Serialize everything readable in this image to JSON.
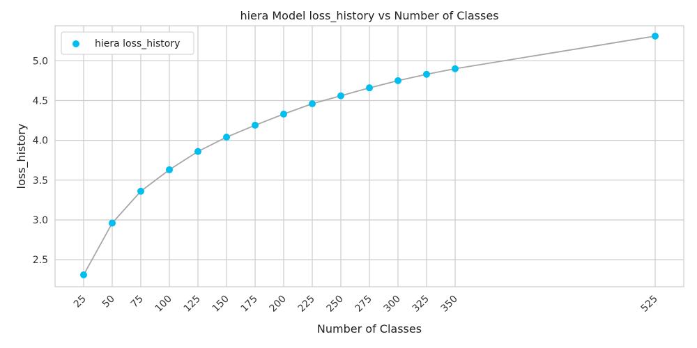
{
  "chart_data": {
    "type": "line",
    "title": "hiera Model loss_history vs Number of Classes",
    "xlabel": "Number of Classes",
    "ylabel": "loss_history",
    "x": [
      25,
      50,
      75,
      100,
      125,
      150,
      175,
      200,
      225,
      250,
      275,
      300,
      325,
      350,
      525
    ],
    "series": [
      {
        "name": "hiera loss_history",
        "values": [
          2.31,
          2.96,
          3.36,
          3.63,
          3.86,
          4.04,
          4.19,
          4.33,
          4.46,
          4.56,
          4.66,
          4.75,
          4.83,
          4.9,
          5.31
        ],
        "marker_color": "#00bfef",
        "line_color": "#a6a6a6"
      }
    ],
    "xticks": [
      "25",
      "50",
      "75",
      "100",
      "125",
      "150",
      "175",
      "200",
      "225",
      "250",
      "275",
      "300",
      "325",
      "350",
      "525"
    ],
    "yticks": [
      2.5,
      3.0,
      3.5,
      4.0,
      4.5,
      5.0
    ],
    "ytick_labels": [
      "2.5",
      "3.0",
      "3.5",
      "4.0",
      "4.5",
      "5.0"
    ],
    "xlim": [
      0,
      550
    ],
    "ylim": [
      2.16,
      5.44
    ],
    "grid": true,
    "legend_position": "top-left"
  }
}
